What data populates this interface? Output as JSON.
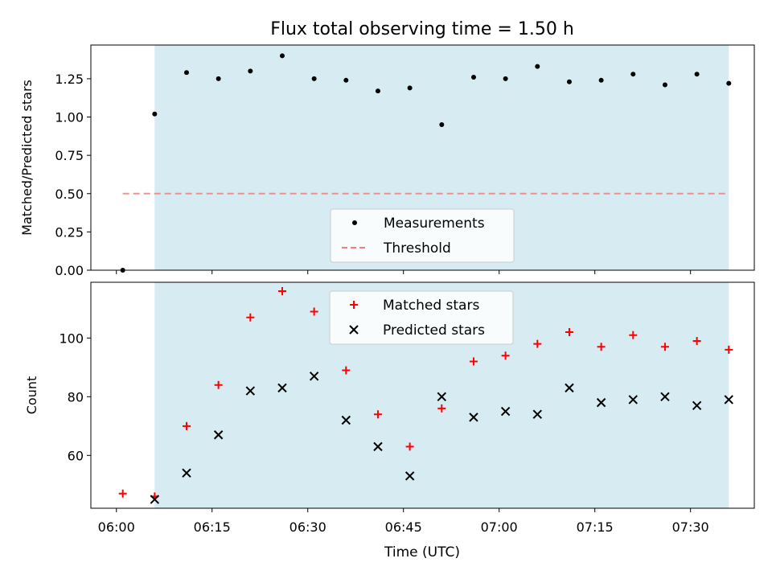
{
  "title": "Flux total observing time = 1.50 h",
  "xlabel": "Time (UTC)",
  "x_ticks": [
    "06:00",
    "06:15",
    "06:30",
    "06:45",
    "07:00",
    "07:15",
    "07:30"
  ],
  "chart_data": [
    {
      "type": "scatter",
      "ylabel": "Matched/Predicted stars",
      "xlim": [
        "05:56",
        "07:40"
      ],
      "ylim": [
        0.0,
        1.47
      ],
      "y_ticks": [
        "0.00",
        "0.25",
        "0.50",
        "0.75",
        "1.00",
        "1.25"
      ],
      "shaded_interval": [
        "06:06",
        "07:36"
      ],
      "legend_placement": "lower-center",
      "x": [
        "06:01",
        "06:06",
        "06:11",
        "06:16",
        "06:21",
        "06:26",
        "06:31",
        "06:36",
        "06:41",
        "06:46",
        "06:51",
        "06:56",
        "07:01",
        "07:06",
        "07:11",
        "07:16",
        "07:21",
        "07:26",
        "07:31",
        "07:36"
      ],
      "series": [
        {
          "name": "Measurements",
          "marker": "dot",
          "color": "#000000",
          "values": [
            0.0,
            1.02,
            1.29,
            1.25,
            1.3,
            1.4,
            1.25,
            1.24,
            1.17,
            1.19,
            0.95,
            1.26,
            1.25,
            1.33,
            1.23,
            1.24,
            1.28,
            1.21,
            1.28,
            1.22
          ]
        },
        {
          "name": "Threshold",
          "marker": "dashed-line",
          "color": "#f08080",
          "x": [
            "06:01",
            "07:36"
          ],
          "values": [
            0.5,
            0.5
          ]
        }
      ]
    },
    {
      "type": "scatter",
      "ylabel": "Count",
      "xlim": [
        "05:56",
        "07:40"
      ],
      "ylim": [
        42,
        119
      ],
      "y_ticks": [
        "60",
        "80",
        "100"
      ],
      "shaded_interval": [
        "06:06",
        "07:36"
      ],
      "legend_placement": "upper-center",
      "x": [
        "06:01",
        "06:06",
        "06:11",
        "06:16",
        "06:21",
        "06:26",
        "06:31",
        "06:36",
        "06:41",
        "06:46",
        "06:51",
        "06:56",
        "07:01",
        "07:06",
        "07:11",
        "07:16",
        "07:21",
        "07:26",
        "07:31",
        "07:36"
      ],
      "series": [
        {
          "name": "Matched stars",
          "marker": "plus",
          "color": "#ff0000",
          "values": [
            47,
            46,
            70,
            84,
            107,
            116,
            109,
            89,
            74,
            63,
            76,
            92,
            94,
            98,
            102,
            97,
            101,
            97,
            99,
            96
          ]
        },
        {
          "name": "Predicted stars",
          "marker": "x",
          "color": "#000000",
          "x": [
            "06:06",
            "06:11",
            "06:16",
            "06:21",
            "06:26",
            "06:31",
            "06:36",
            "06:41",
            "06:46",
            "06:51",
            "06:56",
            "07:01",
            "07:06",
            "07:11",
            "07:16",
            "07:21",
            "07:26",
            "07:31",
            "07:36"
          ],
          "values": [
            45,
            54,
            67,
            82,
            83,
            87,
            72,
            63,
            53,
            80,
            73,
            75,
            74,
            83,
            78,
            79,
            80,
            77,
            79
          ]
        }
      ]
    }
  ],
  "colors": {
    "shade": "#add8e6",
    "legend_bg": "#ffffff"
  }
}
